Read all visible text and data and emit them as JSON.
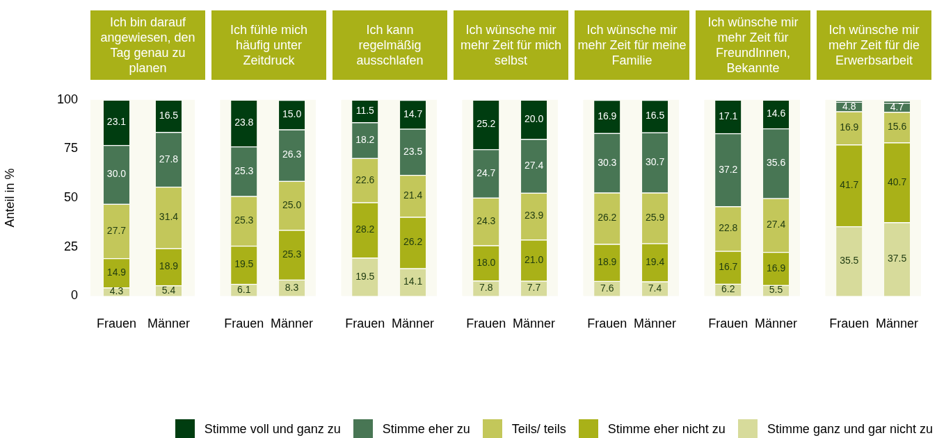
{
  "chart_data": [
    {
      "type": "bar",
      "stacked": true,
      "title": "Ich bin darauf angewiesen, den Tag genau zu planen",
      "ylabel": "Anteil in %",
      "categories": [
        "Frauen",
        "Männer"
      ],
      "ylim": [
        0,
        100
      ],
      "yticks": [
        0,
        25,
        50,
        75,
        100
      ],
      "legend": "bottom",
      "series": [
        {
          "name": "Stimme ganz und gar nicht zu",
          "color": "#d7db9b",
          "values": [
            4.3,
            5.4
          ],
          "value_labels": [
            "4.3",
            "5.4"
          ]
        },
        {
          "name": "Stimme eher nicht zu",
          "color": "#a9b118",
          "values": [
            14.9,
            18.9
          ],
          "value_labels": [
            "14.9",
            "18.9"
          ]
        },
        {
          "name": "Teils/ teils",
          "color": "#c3c75a",
          "values": [
            27.7,
            31.4
          ],
          "value_labels": [
            "27.7",
            "31.4"
          ]
        },
        {
          "name": "Stimme eher zu",
          "color": "#487654",
          "values": [
            30.0,
            27.8
          ],
          "value_labels": [
            "30.0",
            "27.8"
          ]
        },
        {
          "name": "Stimme voll und ganz zu",
          "color": "#003d10",
          "values": [
            23.1,
            16.5
          ],
          "value_labels": [
            "23.1",
            "16.5"
          ]
        }
      ]
    },
    {
      "type": "bar",
      "stacked": true,
      "title": "Ich fühle mich häufig unter Zeitdruck",
      "categories": [
        "Frauen",
        "Männer"
      ],
      "ylim": [
        0,
        100
      ],
      "yticks": [
        0,
        25,
        50,
        75,
        100
      ],
      "tick_labels": "x",
      "series": [
        {
          "color": "#d7db9b",
          "values": [
            6.1,
            8.3
          ],
          "value_labels": [
            "6.1",
            "8.3"
          ]
        },
        {
          "color": "#a9b118",
          "values": [
            19.5,
            25.3
          ],
          "value_labels": [
            "19.5",
            "25.3"
          ]
        },
        {
          "color": "#c3c75a",
          "values": [
            25.3,
            25.0
          ],
          "value_labels": [
            "25.3",
            "25.0"
          ]
        },
        {
          "color": "#487654",
          "values": [
            25.3,
            26.3
          ],
          "value_labels": [
            "25.3",
            "26.3"
          ]
        },
        {
          "color": "#003d10",
          "values": [
            23.8,
            15.0
          ],
          "value_labels": [
            "23.8",
            "15.0"
          ]
        }
      ]
    },
    {
      "type": "bar",
      "stacked": true,
      "title": "Ich kann regelmäßig ausschlafen",
      "categories": [
        "Frauen",
        "Männer"
      ],
      "ylim": [
        0,
        100
      ],
      "yticks": [
        0,
        25,
        50,
        75,
        100
      ],
      "tick_labels": "x",
      "series": [
        {
          "color": "#d7db9b",
          "values": [
            19.5,
            14.1
          ],
          "value_labels": [
            "19.5",
            "14.1"
          ]
        },
        {
          "color": "#a9b118",
          "values": [
            28.2,
            26.2
          ],
          "value_labels": [
            "28.2",
            "26.2"
          ]
        },
        {
          "color": "#c3c75a",
          "values": [
            22.6,
            21.4
          ],
          "value_labels": [
            "22.6",
            "21.4"
          ]
        },
        {
          "color": "#487654",
          "values": [
            18.2,
            23.5
          ],
          "value_labels": [
            "18.2",
            "23.5"
          ]
        },
        {
          "color": "#003d10",
          "values": [
            11.5,
            14.7
          ],
          "value_labels": [
            "11.5",
            "14.7"
          ]
        }
      ]
    },
    {
      "type": "bar",
      "stacked": true,
      "title": "Ich wünsche mir mehr Zeit für mich selbst",
      "categories": [
        "Frauen",
        "Männer"
      ],
      "ylim": [
        0,
        100
      ],
      "yticks": [
        0,
        25,
        50,
        75,
        100
      ],
      "tick_labels": "x",
      "series": [
        {
          "color": "#d7db9b",
          "values": [
            7.8,
            7.7
          ],
          "value_labels": [
            "7.8",
            "7.7"
          ]
        },
        {
          "color": "#a9b118",
          "values": [
            18.0,
            21.0
          ],
          "value_labels": [
            "18.0",
            "21.0"
          ]
        },
        {
          "color": "#c3c75a",
          "values": [
            24.3,
            23.9
          ],
          "value_labels": [
            "24.3",
            "23.9"
          ]
        },
        {
          "color": "#487654",
          "values": [
            24.7,
            27.4
          ],
          "value_labels": [
            "24.7",
            "27.4"
          ]
        },
        {
          "color": "#003d10",
          "values": [
            25.2,
            20.0
          ],
          "value_labels": [
            "25.2",
            "20.0"
          ]
        }
      ]
    },
    {
      "type": "bar",
      "stacked": true,
      "title": "Ich wünsche mir mehr Zeit für meine Familie",
      "categories": [
        "Frauen",
        "Männer"
      ],
      "ylim": [
        0,
        100
      ],
      "yticks": [
        0,
        25,
        50,
        75,
        100
      ],
      "tick_labels": "x",
      "series": [
        {
          "color": "#d7db9b",
          "values": [
            7.6,
            7.4
          ],
          "value_labels": [
            "7.6",
            "7.4"
          ]
        },
        {
          "color": "#a9b118",
          "values": [
            18.9,
            19.4
          ],
          "value_labels": [
            "18.9",
            "19.4"
          ]
        },
        {
          "color": "#c3c75a",
          "values": [
            26.2,
            25.9
          ],
          "value_labels": [
            "26.2",
            "25.9"
          ]
        },
        {
          "color": "#487654",
          "values": [
            30.3,
            30.7
          ],
          "value_labels": [
            "30.3",
            "30.7"
          ]
        },
        {
          "color": "#003d10",
          "values": [
            16.9,
            16.5
          ],
          "value_labels": [
            "16.9",
            "16.5"
          ]
        }
      ]
    },
    {
      "type": "bar",
      "stacked": true,
      "title": "Ich wünsche mir mehr Zeit für FreundInnen, Bekannte",
      "categories": [
        "Frauen",
        "Männer"
      ],
      "ylim": [
        0,
        100
      ],
      "yticks": [
        0,
        25,
        50,
        75,
        100
      ],
      "tick_labels": "x",
      "series": [
        {
          "color": "#d7db9b",
          "values": [
            6.2,
            5.5
          ],
          "value_labels": [
            "6.2",
            "5.5"
          ]
        },
        {
          "color": "#a9b118",
          "values": [
            16.7,
            16.9
          ],
          "value_labels": [
            "16.7",
            "16.9"
          ]
        },
        {
          "color": "#c3c75a",
          "values": [
            22.8,
            27.4
          ],
          "value_labels": [
            "22.8",
            "27.4"
          ]
        },
        {
          "color": "#487654",
          "values": [
            37.2,
            35.6
          ],
          "value_labels": [
            "37.2",
            "35.6"
          ]
        },
        {
          "color": "#003d10",
          "values": [
            17.1,
            14.6
          ],
          "value_labels": [
            "17.1",
            "14.6"
          ]
        }
      ]
    },
    {
      "type": "bar",
      "stacked": true,
      "title": "Ich wünsche mir mehr Zeit für die Erwerbsarbeit",
      "categories": [
        "Frauen",
        "Männer"
      ],
      "ylim": [
        0,
        100
      ],
      "yticks": [
        0,
        25,
        50,
        75,
        100
      ],
      "tick_labels": "x",
      "series": [
        {
          "color": "#d7db9b",
          "values": [
            35.5,
            37.5
          ],
          "value_labels": [
            "35.5",
            "37.5"
          ]
        },
        {
          "color": "#a9b118",
          "values": [
            41.7,
            40.7
          ],
          "value_labels": [
            "41.7",
            "40.7"
          ]
        },
        {
          "color": "#c3c75a",
          "values": [
            16.9,
            15.6
          ],
          "value_labels": [
            "16.9",
            "15.6"
          ]
        },
        {
          "color": "#487654",
          "values": [
            4.8,
            4.7
          ],
          "value_labels": [
            "4.8",
            "4.7"
          ]
        },
        {
          "color": "#003d10",
          "values": [
            0.5,
            0.9
          ],
          "value_labels": [
            null,
            null
          ]
        }
      ]
    }
  ]
}
